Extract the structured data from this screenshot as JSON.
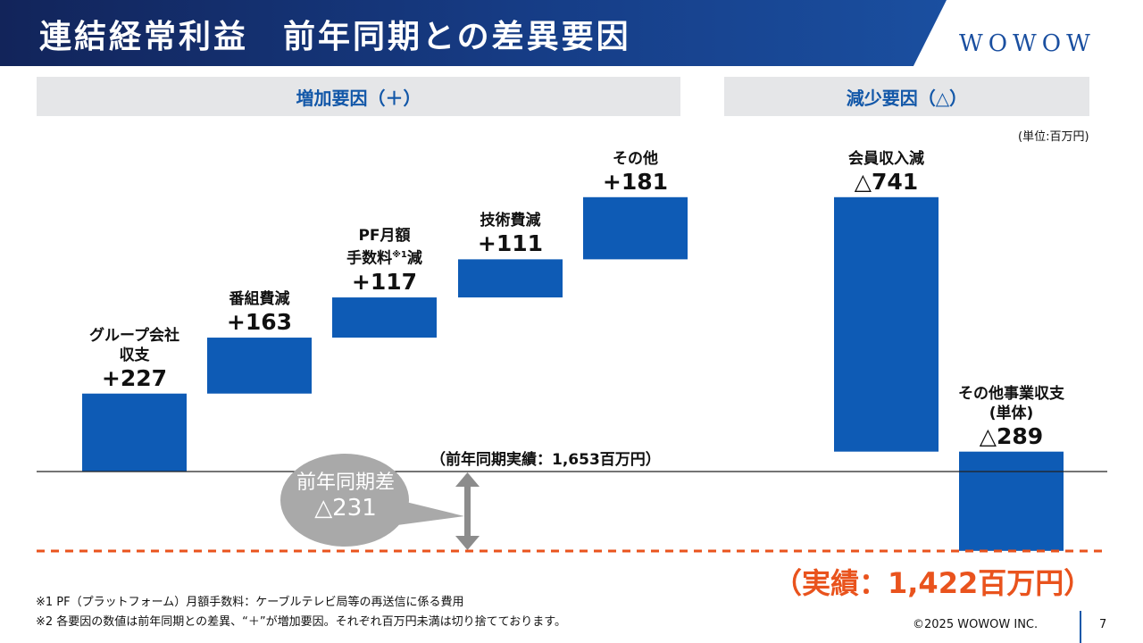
{
  "title": "連結経常利益　前年同期との差異要因",
  "logo": "WOWOW",
  "sections": {
    "increase": "増加要因（＋）",
    "decrease": "減少要因（△）"
  },
  "unit_note": "(単位:百万円)",
  "baseline_label": "（前年同期実績：1,653百万円）",
  "yoy": {
    "label": "前年同期差",
    "value": "△231"
  },
  "result_label": "（実績：1,422百万円）",
  "notes": [
    "※1 PF（プラットフォーム）月額手数料：ケーブルテレビ局等の再送信に係る費用",
    "※2 各要因の数値は前年同期との差異、“＋”が増加要因。それぞれ百万円未満は切り捨てております。"
  ],
  "copyright": "©2025 WOWOW INC.",
  "page_number": "7",
  "chart_data": {
    "type": "waterfall",
    "start": {
      "label": "前年同期実績",
      "value": 1653
    },
    "end": {
      "label": "実績",
      "value": 1422
    },
    "unit": "百万円",
    "steps": [
      {
        "name_lines": [
          "グループ会社",
          "収支"
        ],
        "value": 227,
        "display": "+227"
      },
      {
        "name_lines": [
          "番組費減"
        ],
        "value": 163,
        "display": "+163"
      },
      {
        "name_lines": [
          "PF月額",
          "手数料",
          "減"
        ],
        "sup": "※1",
        "value": 117,
        "display": "+117"
      },
      {
        "name_lines": [
          "技術費減"
        ],
        "value": 111,
        "display": "+111"
      },
      {
        "name_lines": [
          "その他"
        ],
        "value": 181,
        "display": "+181"
      },
      {
        "name_lines": [
          "会員収入減"
        ],
        "value": -741,
        "display": "△741"
      },
      {
        "name_lines": [
          "その他事業収支",
          "(単体)"
        ],
        "value": -289,
        "display": "△289"
      }
    ],
    "colors": {
      "bar": "#0e5bb5",
      "result_line": "#e9531d",
      "yoy_bubble": "#a9a9a9"
    }
  }
}
